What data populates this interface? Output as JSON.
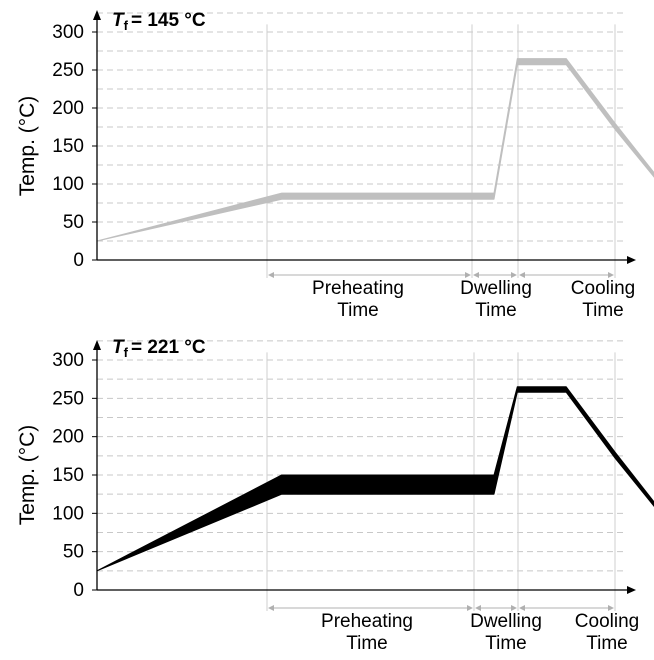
{
  "chart_data": [
    {
      "type": "area",
      "title_symbol": "T",
      "title_subscript": "f",
      "title_value": "= 145 °C",
      "ylabel": "Temp. (°C)",
      "ylim": [
        0,
        300
      ],
      "yticks": [
        "0",
        "50",
        "100",
        "150",
        "200",
        "250",
        "300"
      ],
      "grid": true,
      "band_color": "#bfbfbf",
      "phases": [
        {
          "line1": "Preheating",
          "line2": "Time"
        },
        {
          "line1": "Dwelling",
          "line2": "Time"
        },
        {
          "line1": "Cooling",
          "line2": "Time"
        }
      ],
      "band": {
        "x": [
          0,
          0.435,
          0.935,
          0.99,
          1.105,
          1.22,
          1.34
        ],
        "upper": [
          25,
          88,
          88,
          265,
          265,
          180,
          95
        ],
        "lower": [
          25,
          80,
          80,
          257,
          257,
          172,
          90
        ]
      }
    },
    {
      "type": "area",
      "title_symbol": "T",
      "title_subscript": "f",
      "title_value": "= 221 °C",
      "ylabel": "Temp. (°C)",
      "ylim": [
        0,
        300
      ],
      "yticks": [
        "0",
        "50",
        "100",
        "150",
        "200",
        "250",
        "300"
      ],
      "grid": true,
      "band_color": "#000000",
      "phases": [
        {
          "line1": "Preheating",
          "line2": "Time"
        },
        {
          "line1": "Dwelling",
          "line2": "Time"
        },
        {
          "line1": "Cooling",
          "line2": "Time"
        }
      ],
      "band": {
        "x": [
          0,
          0.435,
          0.935,
          0.99,
          1.105,
          1.22,
          1.34
        ],
        "upper": [
          25,
          150,
          150,
          265,
          265,
          180,
          95
        ],
        "lower": [
          25,
          125,
          125,
          258,
          258,
          172,
          90
        ]
      }
    }
  ]
}
